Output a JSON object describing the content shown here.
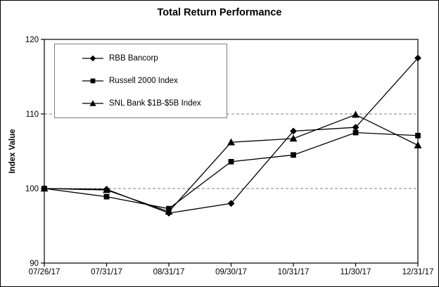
{
  "chart_data": {
    "type": "line",
    "title": "Total Return Performance",
    "ylabel": "Index Value",
    "xlabel": "",
    "categories": [
      "07/26/17",
      "07/31/17",
      "08/31/17",
      "09/30/17",
      "10/31/17",
      "11/30/17",
      "12/31/17"
    ],
    "series": [
      {
        "name": "RBB Bancorp",
        "marker": "diamond",
        "values": [
          100.0,
          99.9,
          96.7,
          98.0,
          107.7,
          108.2,
          117.5
        ]
      },
      {
        "name": "Russell 2000 Index",
        "marker": "square",
        "values": [
          100.0,
          98.9,
          97.3,
          103.6,
          104.5,
          107.5,
          107.1
        ]
      },
      {
        "name": "SNL Bank $1B-$5B Index",
        "marker": "triangle",
        "values": [
          100.0,
          99.8,
          96.9,
          106.2,
          106.7,
          109.9,
          105.8
        ]
      }
    ],
    "ylim": [
      90,
      120
    ],
    "yticks": [
      90,
      100,
      110,
      120
    ],
    "gridlines_y": [
      100,
      110
    ],
    "grid": "dashed",
    "legend_position": "upper-left-inside",
    "colors": {
      "series": "#000000",
      "grid": "#7f7f7f",
      "frame": "#000000",
      "legend_border": "#7f7f7f",
      "background": "#ffffff"
    }
  }
}
